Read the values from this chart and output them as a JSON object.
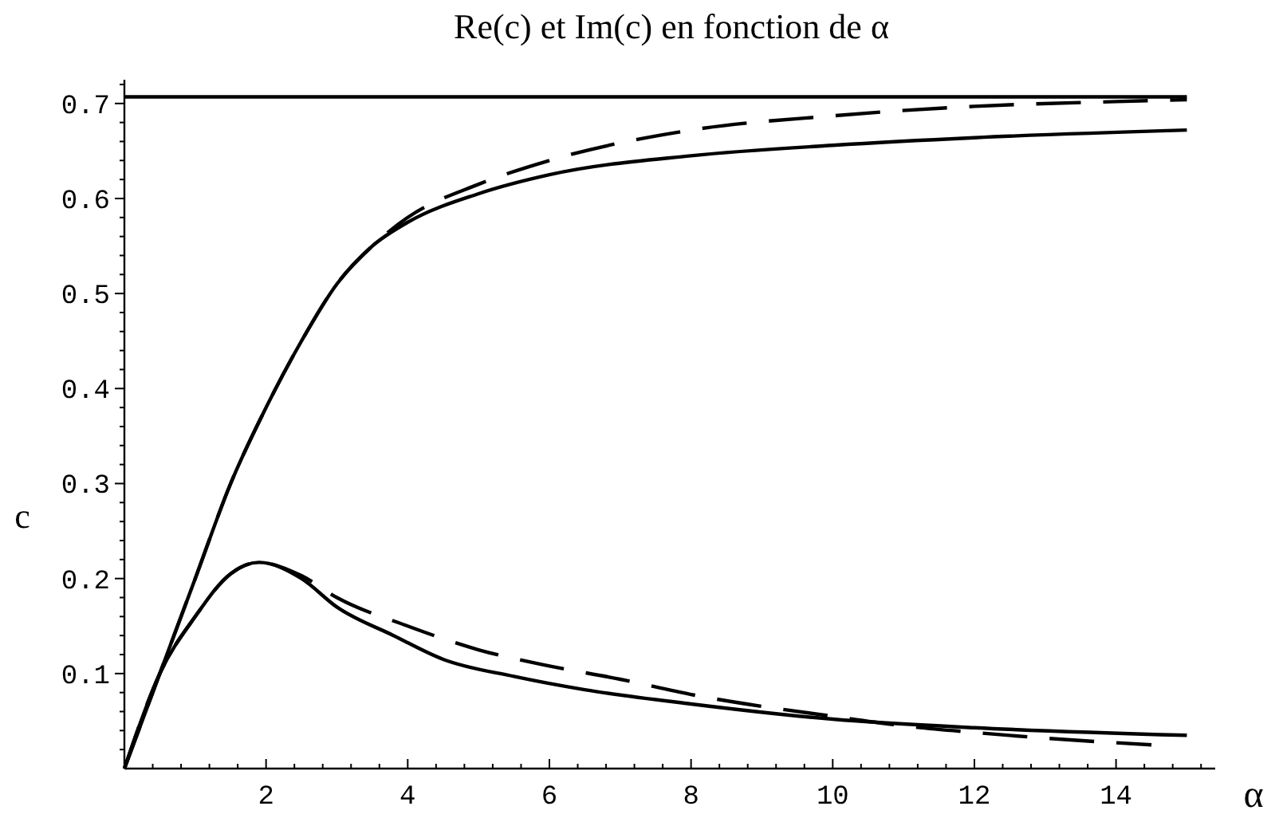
{
  "chart_data": {
    "type": "line",
    "title": "Re(c) et Im(c) en fonction de α",
    "xlabel": "α",
    "ylabel": "c",
    "xlim": [
      0,
      15.4
    ],
    "ylim": [
      0,
      0.725
    ],
    "xticks": [
      {
        "value": 0.4,
        "label": null
      },
      {
        "value": 0.8,
        "label": null
      },
      {
        "value": 1.2,
        "label": null
      },
      {
        "value": 1.6,
        "label": null
      },
      2,
      {
        "value": 2.4,
        "label": null
      },
      {
        "value": 2.8,
        "label": null
      },
      {
        "value": 3.2,
        "label": null
      },
      {
        "value": 3.6,
        "label": null
      },
      4,
      {
        "value": 4.4,
        "label": null
      },
      {
        "value": 4.8,
        "label": null
      },
      {
        "value": 5.2,
        "label": null
      },
      {
        "value": 5.6,
        "label": null
      },
      6,
      {
        "value": 6.4,
        "label": null
      },
      {
        "value": 6.8,
        "label": null
      },
      {
        "value": 7.2,
        "label": null
      },
      {
        "value": 7.6,
        "label": null
      },
      8,
      {
        "value": 8.4,
        "label": null
      },
      {
        "value": 8.8,
        "label": null
      },
      {
        "value": 9.2,
        "label": null
      },
      {
        "value": 9.6,
        "label": null
      },
      10,
      {
        "value": 10.4,
        "label": null
      },
      {
        "value": 10.8,
        "label": null
      },
      {
        "value": 11.2,
        "label": null
      },
      {
        "value": 11.6,
        "label": null
      },
      12,
      {
        "value": 12.4,
        "label": null
      },
      {
        "value": 12.8,
        "label": null
      },
      {
        "value": 13.2,
        "label": null
      },
      {
        "value": 13.6,
        "label": null
      },
      14,
      {
        "value": 14.4,
        "label": null
      },
      {
        "value": 14.8,
        "label": null
      },
      {
        "value": 15.2,
        "label": null
      }
    ],
    "yticks": [
      {
        "value": 0.02,
        "label": null
      },
      {
        "value": 0.04,
        "label": null
      },
      {
        "value": 0.06,
        "label": null
      },
      {
        "value": 0.08,
        "label": null
      },
      0.1,
      {
        "value": 0.12,
        "label": null
      },
      {
        "value": 0.14,
        "label": null
      },
      {
        "value": 0.16,
        "label": null
      },
      {
        "value": 0.18,
        "label": null
      },
      0.2,
      {
        "value": 0.22,
        "label": null
      },
      {
        "value": 0.24,
        "label": null
      },
      {
        "value": 0.26,
        "label": null
      },
      {
        "value": 0.28,
        "label": null
      },
      0.3,
      {
        "value": 0.32,
        "label": null
      },
      {
        "value": 0.34,
        "label": null
      },
      {
        "value": 0.36,
        "label": null
      },
      {
        "value": 0.38,
        "label": null
      },
      0.4,
      {
        "value": 0.42,
        "label": null
      },
      {
        "value": 0.44,
        "label": null
      },
      {
        "value": 0.46,
        "label": null
      },
      {
        "value": 0.48,
        "label": null
      },
      0.5,
      {
        "value": 0.52,
        "label": null
      },
      {
        "value": 0.54,
        "label": null
      },
      {
        "value": 0.56,
        "label": null
      },
      {
        "value": 0.58,
        "label": null
      },
      0.6,
      {
        "value": 0.62,
        "label": null
      },
      {
        "value": 0.64,
        "label": null
      },
      {
        "value": 0.66,
        "label": null
      },
      {
        "value": 0.68,
        "label": null
      },
      0.7,
      {
        "value": 0.72,
        "label": null
      }
    ],
    "grid": false,
    "series": [
      {
        "color": "#000000",
        "line_style": "solid",
        "x": [
          0,
          15
        ],
        "values": [
          0.707,
          0.707
        ]
      },
      {
        "color": "#000000",
        "line_style": "solid",
        "x": [
          0,
          0.5,
          1,
          1.5,
          2,
          2.5,
          3,
          3.5,
          4,
          5,
          6,
          8,
          10,
          12,
          15
        ],
        "values": [
          0,
          0.1,
          0.2,
          0.3,
          0.38,
          0.45,
          0.51,
          0.55,
          0.575,
          0.605,
          0.625,
          0.645,
          0.656,
          0.664,
          0.672
        ]
      },
      {
        "color": "#000000",
        "line_style": "dashed",
        "x": [
          0,
          0.5,
          1,
          1.5,
          2,
          2.5,
          3,
          3.5,
          4,
          5,
          6,
          8,
          10,
          12,
          14,
          15
        ],
        "values": [
          0,
          0.1,
          0.2,
          0.3,
          0.38,
          0.45,
          0.51,
          0.55,
          0.58,
          0.615,
          0.64,
          0.672,
          0.687,
          0.697,
          0.702,
          0.704
        ]
      },
      {
        "color": "#000000",
        "line_style": "solid",
        "x": [
          0,
          0.5,
          1,
          1.5,
          1.9,
          2.5,
          3,
          3.8,
          4.5,
          5.5,
          6.5,
          8,
          10,
          12,
          15
        ],
        "values": [
          0,
          0.1,
          0.16,
          0.205,
          0.217,
          0.2,
          0.17,
          0.14,
          0.115,
          0.097,
          0.083,
          0.068,
          0.052,
          0.043,
          0.035
        ]
      },
      {
        "color": "#000000",
        "line_style": "dashed",
        "x": [
          0,
          0.5,
          1,
          1.5,
          1.9,
          2.5,
          3,
          4,
          5,
          6,
          7,
          8,
          10,
          11,
          12,
          13,
          14.5
        ],
        "values": [
          0,
          0.1,
          0.16,
          0.205,
          0.217,
          0.203,
          0.18,
          0.15,
          0.125,
          0.108,
          0.094,
          0.078,
          0.055,
          0.045,
          0.038,
          0.032,
          0.025
        ]
      }
    ]
  }
}
